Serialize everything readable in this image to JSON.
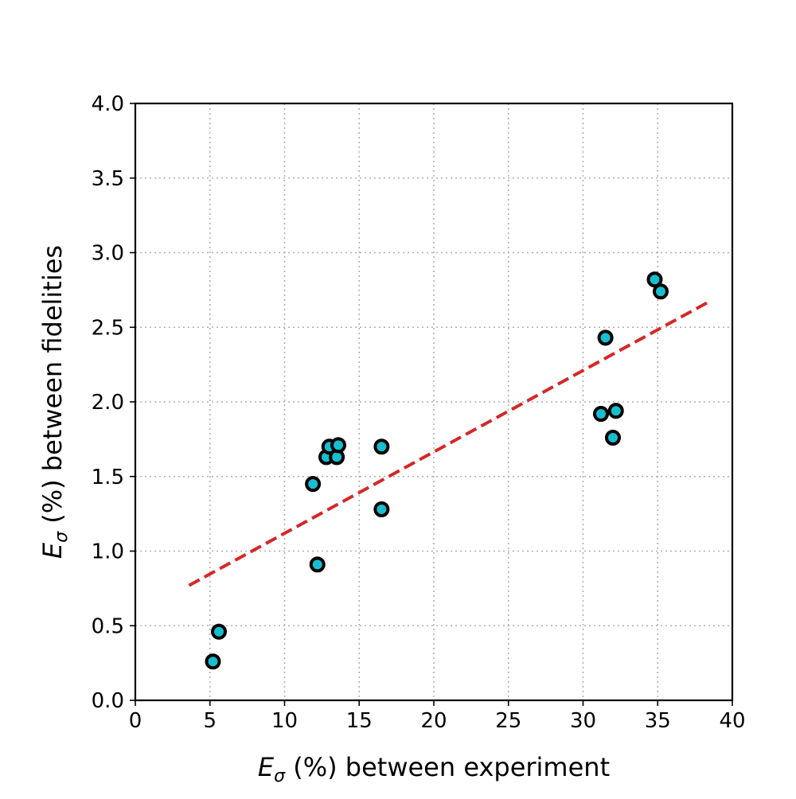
{
  "chart_data": {
    "type": "scatter",
    "title": "",
    "xlabel": {
      "symbol": "E",
      "subscript": "σ",
      "text": " (%) between experiment"
    },
    "ylabel": {
      "symbol": "E",
      "subscript": "σ",
      "text": " (%) between fidelities"
    },
    "xlim": [
      0,
      40
    ],
    "ylim": [
      0,
      4.0
    ],
    "x_ticks": [
      0,
      5,
      10,
      15,
      20,
      25,
      30,
      35,
      40
    ],
    "x_tick_labels": [
      "0",
      "5",
      "10",
      "15",
      "20",
      "25",
      "30",
      "35",
      "40"
    ],
    "y_ticks": [
      0,
      0.5,
      1.0,
      1.5,
      2.0,
      2.5,
      3.0,
      3.5,
      4.0
    ],
    "y_tick_labels": [
      "0.0",
      "0.5",
      "1.0",
      "1.5",
      "2.0",
      "2.5",
      "3.0",
      "3.5",
      "4.0"
    ],
    "grid": true,
    "grid_style": "dotted",
    "marker": {
      "fill_color": "#17becf",
      "edge_color": "#000000"
    },
    "points": [
      {
        "x": 5.2,
        "y": 0.26
      },
      {
        "x": 5.6,
        "y": 0.46
      },
      {
        "x": 11.9,
        "y": 1.45
      },
      {
        "x": 12.2,
        "y": 0.91
      },
      {
        "x": 12.8,
        "y": 1.63
      },
      {
        "x": 13.0,
        "y": 1.7
      },
      {
        "x": 13.5,
        "y": 1.63
      },
      {
        "x": 13.6,
        "y": 1.71
      },
      {
        "x": 16.5,
        "y": 1.7
      },
      {
        "x": 16.5,
        "y": 1.28
      },
      {
        "x": 31.2,
        "y": 1.92
      },
      {
        "x": 31.5,
        "y": 2.43
      },
      {
        "x": 32.0,
        "y": 1.76
      },
      {
        "x": 32.2,
        "y": 1.94
      },
      {
        "x": 34.8,
        "y": 2.82
      },
      {
        "x": 35.2,
        "y": 2.74
      }
    ],
    "fit_line": {
      "style": "dashed",
      "color": "#d62728",
      "x": [
        3.6,
        38.6
      ],
      "y": [
        0.77,
        2.68
      ]
    }
  }
}
